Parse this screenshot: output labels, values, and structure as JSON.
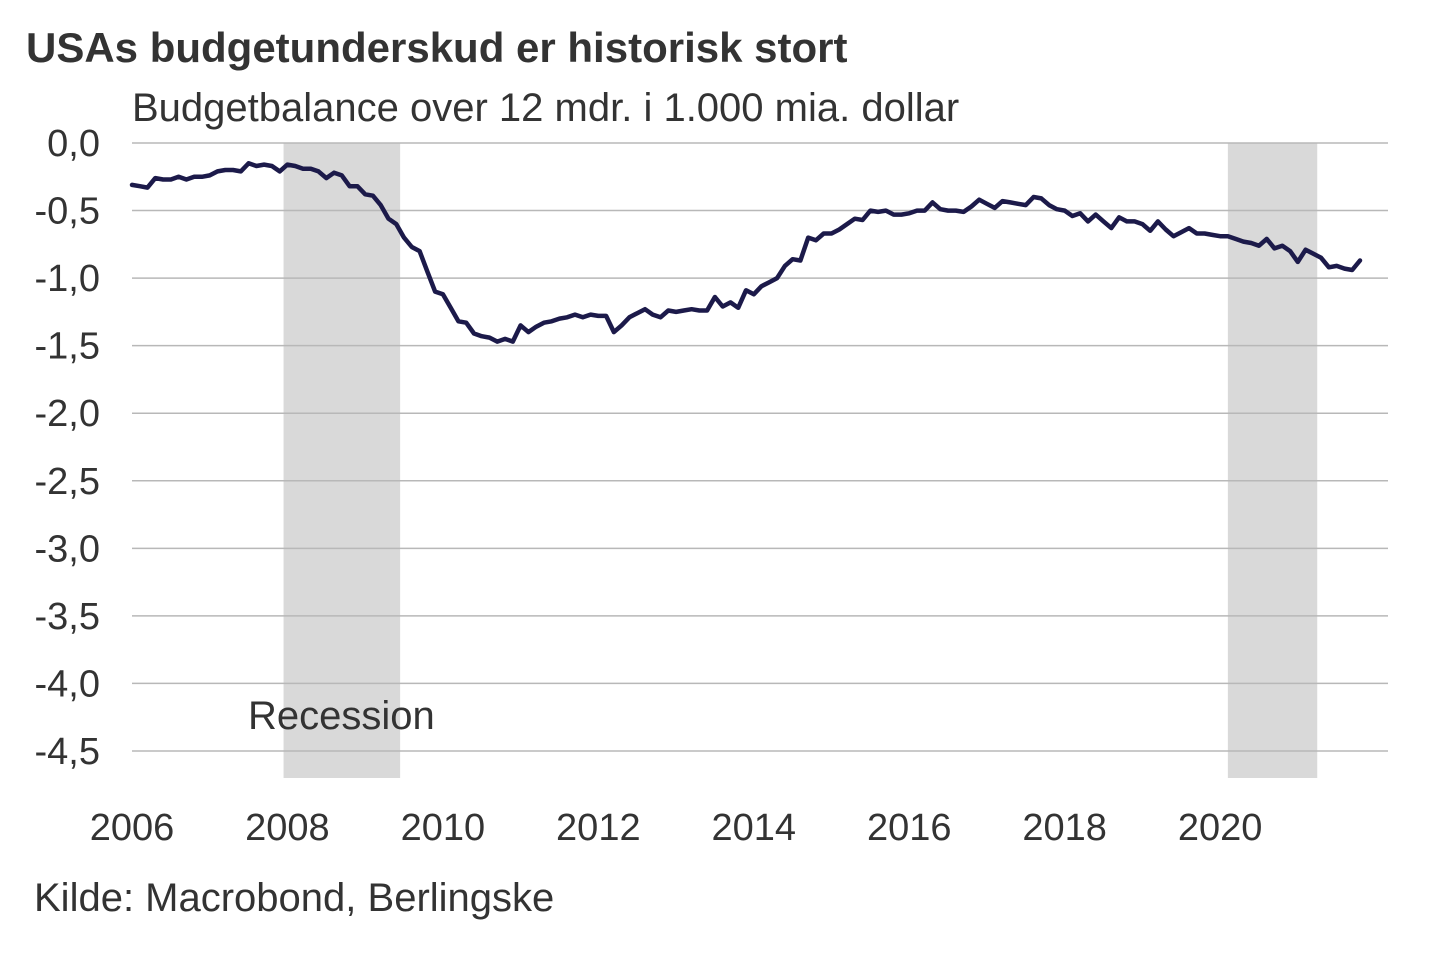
{
  "title": "USAs budgetunderskud er historisk stort",
  "subtitle": "Budgetbalance over 12 mdr. i 1.000 mia. dollar",
  "source": "Kilde: Macrobond, Berlingske",
  "colors": {
    "line": "#1c1a4a",
    "recession": "#d9d9d9",
    "grid": "#b8b8b8"
  },
  "chart_data": {
    "type": "line",
    "ylim": [
      -4.7,
      0.0
    ],
    "xlim": [
      2006.0,
      2021.8
    ],
    "y_ticks": [
      "0,0",
      "-0,5",
      "-1,0",
      "-1,5",
      "-2,0",
      "-2,5",
      "-3,0",
      "-3,5",
      "-4,0",
      "-4,5"
    ],
    "y_tick_values": [
      0,
      -0.5,
      -1.0,
      -1.5,
      -2.0,
      -2.5,
      -3.0,
      -3.5,
      -4.0,
      -4.5
    ],
    "x_ticks": [
      "2006",
      "2008",
      "2010",
      "2012",
      "2014",
      "2016",
      "2018",
      "2020"
    ],
    "x_tick_values": [
      2006,
      2008,
      2010,
      2012,
      2014,
      2016,
      2018,
      2020
    ],
    "grid": "horizontal",
    "recessions": [
      {
        "start": 2007.95,
        "end": 2009.45
      },
      {
        "start": 2020.1,
        "end": 2021.25
      }
    ],
    "annotation": "Recession",
    "series": [
      {
        "values": [
          [
            2006.0,
            -0.31
          ],
          [
            2006.1,
            -0.32
          ],
          [
            2006.2,
            -0.33
          ],
          [
            2006.3,
            -0.26
          ],
          [
            2006.4,
            -0.27
          ],
          [
            2006.5,
            -0.27
          ],
          [
            2006.6,
            -0.25
          ],
          [
            2006.7,
            -0.27
          ],
          [
            2006.8,
            -0.25
          ],
          [
            2006.9,
            -0.25
          ],
          [
            2007.0,
            -0.24
          ],
          [
            2007.1,
            -0.21
          ],
          [
            2007.2,
            -0.2
          ],
          [
            2007.3,
            -0.2
          ],
          [
            2007.4,
            -0.21
          ],
          [
            2007.5,
            -0.15
          ],
          [
            2007.6,
            -0.17
          ],
          [
            2007.7,
            -0.16
          ],
          [
            2007.8,
            -0.17
          ],
          [
            2007.9,
            -0.21
          ],
          [
            2008.0,
            -0.16
          ],
          [
            2008.1,
            -0.17
          ],
          [
            2008.2,
            -0.19
          ],
          [
            2008.3,
            -0.19
          ],
          [
            2008.4,
            -0.21
          ],
          [
            2008.5,
            -0.26
          ],
          [
            2008.6,
            -0.22
          ],
          [
            2008.7,
            -0.24
          ],
          [
            2008.8,
            -0.32
          ],
          [
            2008.9,
            -0.32
          ],
          [
            2009.0,
            -0.38
          ],
          [
            2009.1,
            -0.39
          ],
          [
            2009.2,
            -0.46
          ],
          [
            2009.3,
            -0.56
          ],
          [
            2009.4,
            -0.6
          ],
          [
            2009.5,
            -0.7
          ],
          [
            2009.6,
            -0.77
          ],
          [
            2009.7,
            -0.8
          ],
          [
            2009.8,
            -0.95
          ],
          [
            2009.9,
            -1.1
          ],
          [
            2010.0,
            -1.12
          ],
          [
            2010.1,
            -1.22
          ],
          [
            2010.2,
            -1.32
          ],
          [
            2010.3,
            -1.33
          ],
          [
            2010.4,
            -1.41
          ],
          [
            2010.5,
            -1.43
          ],
          [
            2010.6,
            -1.44
          ],
          [
            2010.7,
            -1.47
          ],
          [
            2010.8,
            -1.45
          ],
          [
            2010.9,
            -1.47
          ],
          [
            2011.0,
            -1.35
          ],
          [
            2011.1,
            -1.4
          ],
          [
            2011.2,
            -1.36
          ],
          [
            2011.3,
            -1.33
          ],
          [
            2011.4,
            -1.32
          ],
          [
            2011.5,
            -1.3
          ],
          [
            2011.6,
            -1.29
          ],
          [
            2011.7,
            -1.27
          ],
          [
            2011.8,
            -1.29
          ],
          [
            2011.9,
            -1.27
          ],
          [
            2012.0,
            -1.28
          ],
          [
            2012.1,
            -1.28
          ],
          [
            2012.2,
            -1.4
          ],
          [
            2012.3,
            -1.35
          ],
          [
            2012.4,
            -1.29
          ],
          [
            2012.5,
            -1.26
          ],
          [
            2012.6,
            -1.23
          ],
          [
            2012.7,
            -1.27
          ],
          [
            2012.8,
            -1.29
          ],
          [
            2012.9,
            -1.24
          ],
          [
            2013.0,
            -1.25
          ],
          [
            2013.1,
            -1.24
          ],
          [
            2013.2,
            -1.23
          ],
          [
            2013.3,
            -1.24
          ],
          [
            2013.4,
            -1.24
          ],
          [
            2013.5,
            -1.14
          ],
          [
            2013.6,
            -1.21
          ],
          [
            2013.7,
            -1.18
          ],
          [
            2013.8,
            -1.22
          ],
          [
            2013.9,
            -1.09
          ],
          [
            2014.0,
            -1.12
          ],
          [
            2014.1,
            -1.06
          ],
          [
            2014.2,
            -1.03
          ],
          [
            2014.3,
            -1.0
          ],
          [
            2014.4,
            -0.91
          ],
          [
            2014.5,
            -0.86
          ],
          [
            2014.6,
            -0.87
          ],
          [
            2014.7,
            -0.7
          ],
          [
            2014.8,
            -0.72
          ],
          [
            2014.9,
            -0.67
          ],
          [
            2015.0,
            -0.67
          ],
          [
            2015.1,
            -0.64
          ],
          [
            2015.2,
            -0.6
          ],
          [
            2015.3,
            -0.56
          ],
          [
            2015.4,
            -0.57
          ],
          [
            2015.5,
            -0.5
          ],
          [
            2015.6,
            -0.51
          ],
          [
            2015.7,
            -0.5
          ],
          [
            2015.8,
            -0.53
          ],
          [
            2015.9,
            -0.53
          ],
          [
            2016.0,
            -0.52
          ],
          [
            2016.1,
            -0.5
          ],
          [
            2016.2,
            -0.5
          ],
          [
            2016.3,
            -0.44
          ],
          [
            2016.4,
            -0.49
          ],
          [
            2016.5,
            -0.5
          ],
          [
            2016.6,
            -0.5
          ],
          [
            2016.7,
            -0.51
          ],
          [
            2016.8,
            -0.47
          ],
          [
            2016.9,
            -0.42
          ],
          [
            2017.0,
            -0.45
          ],
          [
            2017.1,
            -0.48
          ],
          [
            2017.2,
            -0.43
          ],
          [
            2017.3,
            -0.44
          ],
          [
            2017.4,
            -0.45
          ],
          [
            2017.5,
            -0.46
          ],
          [
            2017.6,
            -0.4
          ],
          [
            2017.7,
            -0.41
          ],
          [
            2017.8,
            -0.46
          ],
          [
            2017.9,
            -0.49
          ],
          [
            2018.0,
            -0.5
          ],
          [
            2018.1,
            -0.54
          ],
          [
            2018.2,
            -0.52
          ],
          [
            2018.3,
            -0.58
          ],
          [
            2018.4,
            -0.53
          ],
          [
            2018.5,
            -0.58
          ],
          [
            2018.6,
            -0.63
          ],
          [
            2018.7,
            -0.55
          ],
          [
            2018.8,
            -0.58
          ],
          [
            2018.9,
            -0.58
          ],
          [
            2019.0,
            -0.6
          ],
          [
            2019.1,
            -0.65
          ],
          [
            2019.2,
            -0.58
          ],
          [
            2019.3,
            -0.64
          ],
          [
            2019.4,
            -0.69
          ],
          [
            2019.5,
            -0.66
          ],
          [
            2019.6,
            -0.63
          ],
          [
            2019.7,
            -0.67
          ],
          [
            2019.8,
            -0.67
          ],
          [
            2019.9,
            -0.68
          ],
          [
            2020.0,
            -0.69
          ],
          [
            2020.1,
            -0.69
          ],
          [
            2020.2,
            -0.71
          ],
          [
            2020.3,
            -0.73
          ],
          [
            2020.4,
            -0.74
          ],
          [
            2020.5,
            -0.76
          ],
          [
            2020.6,
            -0.71
          ],
          [
            2020.7,
            -0.78
          ],
          [
            2020.8,
            -0.76
          ],
          [
            2020.9,
            -0.8
          ],
          [
            2021.0,
            -0.88
          ],
          [
            2021.1,
            -0.79
          ],
          [
            2021.2,
            -0.82
          ],
          [
            2021.3,
            -0.85
          ],
          [
            2021.4,
            -0.92
          ],
          [
            2021.5,
            -0.91
          ],
          [
            2021.6,
            -0.93
          ],
          [
            2021.7,
            -0.94
          ],
          [
            2021.8,
            -0.87
          ]
        ]
      }
    ]
  }
}
